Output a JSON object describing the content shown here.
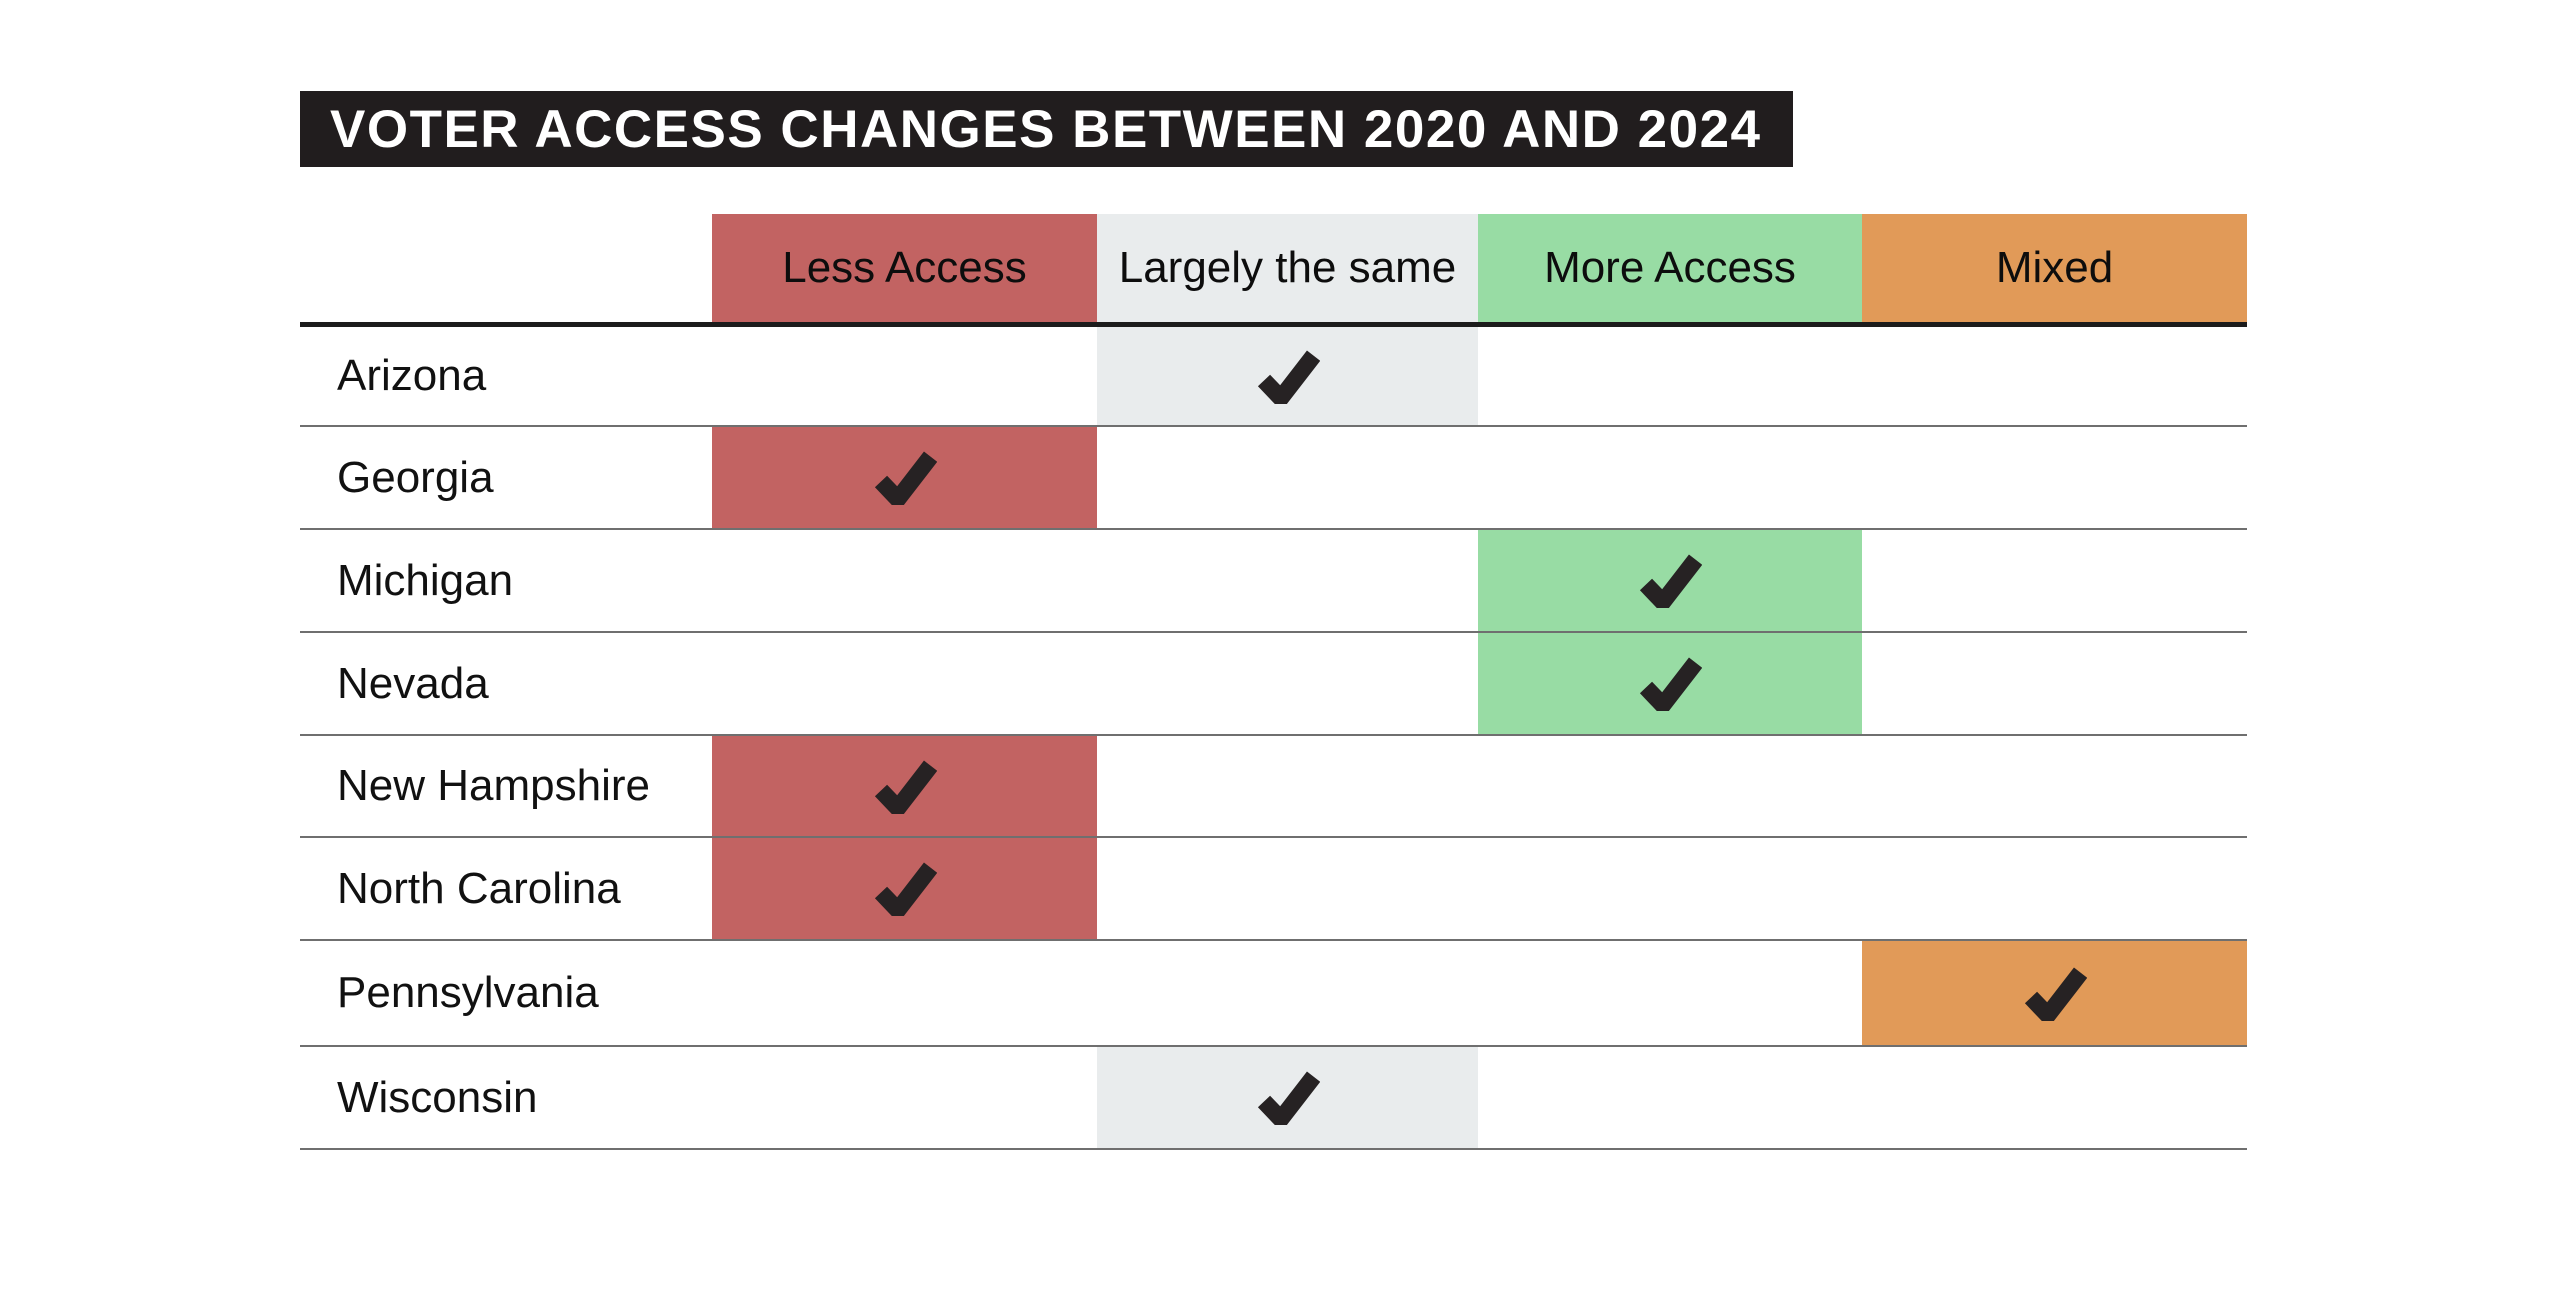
{
  "title_bar": {
    "text": "VOTER ACCESS CHANGES BETWEEN 2020 AND 2024"
  },
  "table": {
    "columns": [
      "Less Access",
      "Largely the same",
      "More Access",
      "Mixed"
    ],
    "rows": [
      {
        "state": "Arizona",
        "value": "Largely the same"
      },
      {
        "state": "Georgia",
        "value": "Less Access"
      },
      {
        "state": "Michigan",
        "value": "More Access"
      },
      {
        "state": "Nevada",
        "value": "More Access"
      },
      {
        "state": "New Hampshire",
        "value": "Less Access"
      },
      {
        "state": "North Carolina",
        "value": "Less Access"
      },
      {
        "state": "Pennsylvania",
        "value": "Mixed"
      },
      {
        "state": "Wisconsin",
        "value": "Largely the same"
      }
    ]
  },
  "colors": {
    "less_access": "#c26362",
    "largely_the_same": "#e9eced",
    "more_access": "#98dca4",
    "mixed": "#e19a58",
    "title_bg": "#211d1e",
    "title_text": "#ffffff",
    "checkmark": "#262223",
    "row_divider": "#6f6f6f",
    "header_rule": "#1c1c1c"
  },
  "chart_data": {
    "type": "table",
    "title": "VOTER ACCESS CHANGES BETWEEN 2020 AND 2024",
    "columns": [
      "Less Access",
      "Largely the same",
      "More Access",
      "Mixed"
    ],
    "rows": [
      {
        "state": "Arizona",
        "less_access": false,
        "largely_the_same": true,
        "more_access": false,
        "mixed": false
      },
      {
        "state": "Georgia",
        "less_access": true,
        "largely_the_same": false,
        "more_access": false,
        "mixed": false
      },
      {
        "state": "Michigan",
        "less_access": false,
        "largely_the_same": false,
        "more_access": true,
        "mixed": false
      },
      {
        "state": "Nevada",
        "less_access": false,
        "largely_the_same": false,
        "more_access": true,
        "mixed": false
      },
      {
        "state": "New Hampshire",
        "less_access": true,
        "largely_the_same": false,
        "more_access": false,
        "mixed": false
      },
      {
        "state": "North Carolina",
        "less_access": true,
        "largely_the_same": false,
        "more_access": false,
        "mixed": false
      },
      {
        "state": "Pennsylvania",
        "less_access": false,
        "largely_the_same": false,
        "more_access": false,
        "mixed": true
      },
      {
        "state": "Wisconsin",
        "less_access": false,
        "largely_the_same": true,
        "more_access": false,
        "mixed": false
      }
    ],
    "marker": "checkmark",
    "legend_position": "none",
    "notes": "Colored header cells double as legend; checked cell in each row carries that column's color"
  }
}
